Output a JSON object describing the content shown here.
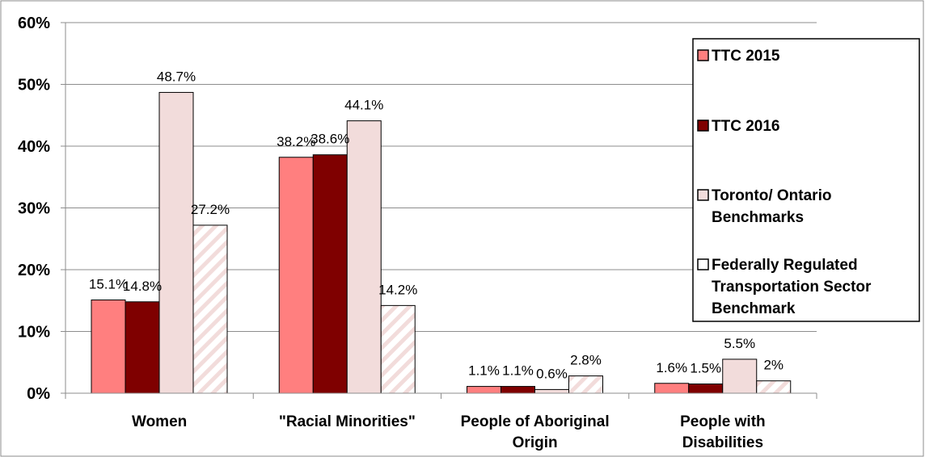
{
  "chart_data": {
    "type": "bar",
    "categories": [
      [
        "Women"
      ],
      [
        "\"Racial Minorities\""
      ],
      [
        "People of Aboriginal",
        "Origin"
      ],
      [
        "People with",
        "Disabilities"
      ]
    ],
    "series": [
      {
        "name": "TTC 2015",
        "values": [
          15.1,
          38.2,
          1.1,
          1.6
        ],
        "labels": [
          "15.1%",
          "38.2%",
          "1.1%",
          "1.6%"
        ],
        "color": "#ff7f7f",
        "pattern": "solid"
      },
      {
        "name": "TTC 2016",
        "values": [
          14.8,
          38.6,
          1.1,
          1.5
        ],
        "labels": [
          "14.8%",
          "38.6%",
          "1.1%",
          "1.5%"
        ],
        "color": "#7f0000",
        "pattern": "solid"
      },
      {
        "name": "Toronto/ Ontario Benchmarks",
        "legend_lines": [
          "Toronto/ Ontario",
          "Benchmarks"
        ],
        "values": [
          48.7,
          44.1,
          0.6,
          5.5
        ],
        "labels": [
          "48.7%",
          "44.1%",
          "0.6%",
          "5.5%"
        ],
        "color": "#f2dcdb",
        "pattern": "solid"
      },
      {
        "name": "Federally Regulated Transportation Sector Benchmark",
        "legend_lines": [
          "Federally Regulated",
          "Transportation Sector",
          "Benchmark"
        ],
        "values": [
          27.2,
          14.2,
          2.8,
          2.0
        ],
        "labels": [
          "27.2%",
          "14.2%",
          "2.8%",
          "2%"
        ],
        "color": "#f2dcdb",
        "pattern": "diagonal-stripes"
      }
    ],
    "y_ticks": [
      "0%",
      "10%",
      "20%",
      "30%",
      "40%",
      "50%",
      "60%"
    ],
    "ylim": [
      0,
      60
    ],
    "grid": true,
    "legend_position": "right"
  }
}
